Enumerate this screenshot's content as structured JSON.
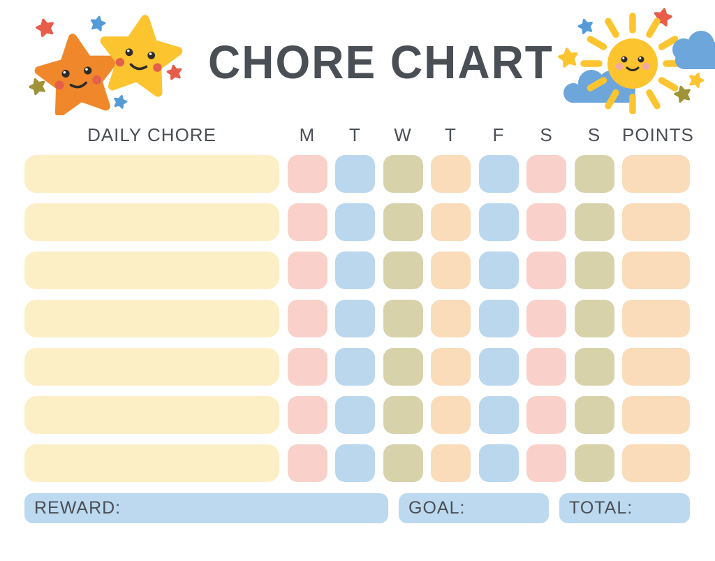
{
  "title": "CHORE CHART",
  "table": {
    "chore_header": "DAILY CHORE",
    "day_headers": [
      "M",
      "T",
      "W",
      "T",
      "F",
      "S",
      "S"
    ],
    "points_header": "POINTS",
    "rows": 7,
    "day_cell_colors": [
      "pink",
      "blue",
      "olive",
      "peach",
      "blue",
      "pink",
      "olive"
    ],
    "points_cell_color": "peach",
    "chore_cell_color": "cream",
    "cell_values": [
      [
        "",
        "",
        "",
        "",
        "",
        "",
        "",
        ""
      ],
      [
        "",
        "",
        "",
        "",
        "",
        "",
        "",
        ""
      ],
      [
        "",
        "",
        "",
        "",
        "",
        "",
        "",
        ""
      ],
      [
        "",
        "",
        "",
        "",
        "",
        "",
        "",
        ""
      ],
      [
        "",
        "",
        "",
        "",
        "",
        "",
        "",
        ""
      ],
      [
        "",
        "",
        "",
        "",
        "",
        "",
        "",
        ""
      ],
      [
        "",
        "",
        "",
        "",
        "",
        "",
        "",
        ""
      ]
    ]
  },
  "footer": {
    "reward_label": "REWARD:",
    "goal_label": "GOAL:",
    "total_label": "TOTAL:",
    "reward_value": "",
    "goal_value": "",
    "total_value": ""
  },
  "decorations": {
    "left": "two-smiling-stars-with-sparkles",
    "right": "smiling-sun-with-clouds-and-sparkles"
  },
  "colors": {
    "text": "#4A4E55",
    "cream": "#FCEFC6",
    "pink": "#FAD1CA",
    "blue": "#BAD7EE",
    "olive": "#D8D2AB",
    "peach": "#FADCBA",
    "footer_blue": "#BCD9EF",
    "star_orange": "#F0882B",
    "star_yellow": "#FCC42F",
    "cloud_blue": "#6CA6DB",
    "accent_red": "#E85C4A",
    "accent_blue": "#549BD8",
    "accent_olive": "#A09237",
    "cheek_red": "#E4604A",
    "cheek_pink": "#F2A9A2",
    "face_dark": "#2F2B27"
  }
}
